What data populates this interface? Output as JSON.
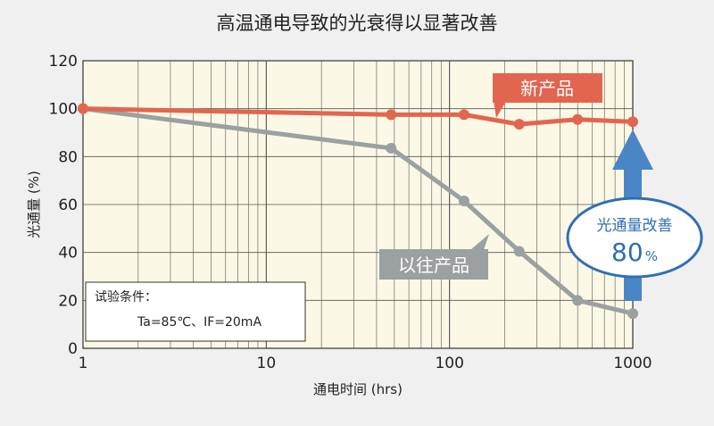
{
  "chart_data": {
    "type": "line",
    "title": "高温通电导致的光衰得以显著改善",
    "xlabel": "通电时间 (hrs)",
    "ylabel": "光通量 (%)",
    "x_scale": "log",
    "xlim": [
      1,
      1000
    ],
    "ylim": [
      0,
      120
    ],
    "x_ticks": [
      "1",
      "10",
      "100",
      "1000"
    ],
    "y_ticks": [
      "0",
      "20",
      "40",
      "60",
      "80",
      "100",
      "120"
    ],
    "grid": true,
    "series": [
      {
        "name": "新产品",
        "color": "#e2664f",
        "x": [
          1,
          48,
          120,
          240,
          500,
          1000
        ],
        "y": [
          100,
          97.5,
          97.5,
          93.5,
          95.5,
          94.5
        ]
      },
      {
        "name": "以往产品",
        "color": "#9aa1a0",
        "x": [
          1,
          48,
          120,
          240,
          500,
          1000
        ],
        "y": [
          100,
          83.5,
          61.5,
          40.5,
          20,
          14.5
        ]
      }
    ],
    "annotations": {
      "conditions_title": "试验条件：",
      "conditions_detail": "Ta=85℃、IF=20mA",
      "improvement_label": "光通量改善",
      "improvement_value": "80",
      "improvement_unit": "%"
    }
  },
  "colors": {
    "plot_background": "#fbf8e6",
    "grid": "#555555",
    "new_product": "#e2664f",
    "old_product": "#9aa1a0",
    "improvement": "#4a86c5"
  }
}
